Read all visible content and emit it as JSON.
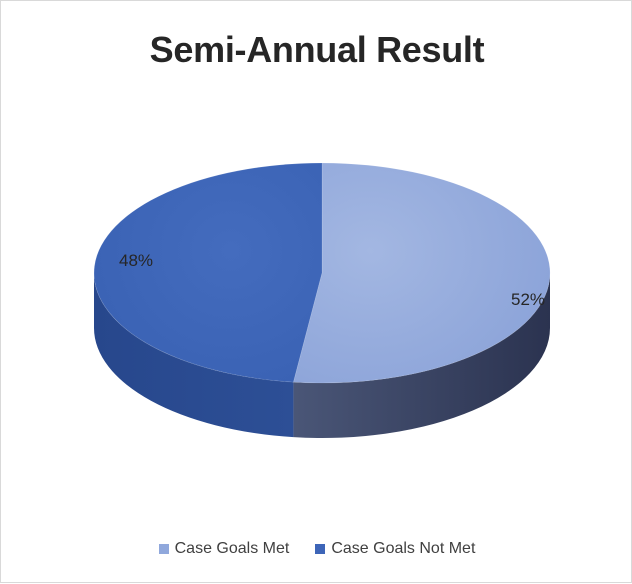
{
  "chart_data": {
    "type": "pie",
    "title": "Semi-Annual Result",
    "categories": [
      "Case Goals Met",
      "Case Goals Not Met"
    ],
    "values": [
      52,
      48
    ],
    "data_labels": [
      "52%",
      "48%"
    ],
    "style": "3d",
    "legend_position": "bottom",
    "colors": {
      "met_top": "#90a8dc",
      "met_side": "#3a4566",
      "not_met_top": "#3d65b8",
      "not_met_side": "#28478a"
    }
  },
  "legend": {
    "items": [
      {
        "label": "Case Goals Met",
        "color": "#90a8dc"
      },
      {
        "label": "Case Goals Not Met",
        "color": "#3d65b8"
      }
    ]
  }
}
